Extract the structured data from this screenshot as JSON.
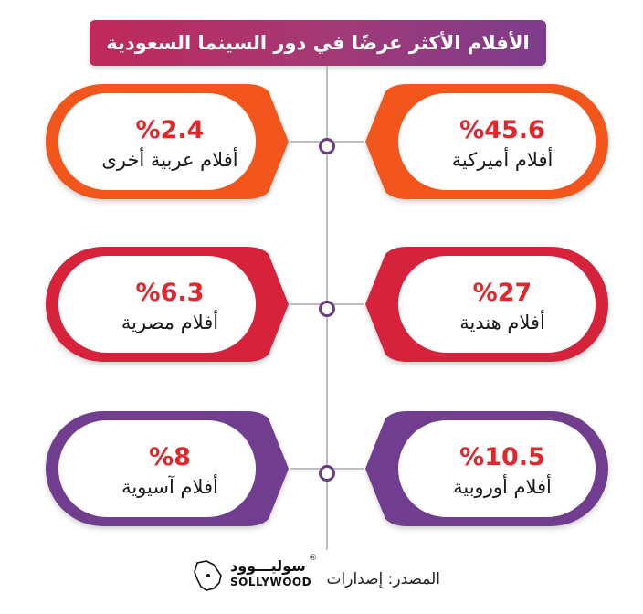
{
  "title": "الأفلام الأكثر عرضًا في دور السينما السعودية",
  "chart_data": {
    "type": "table",
    "categories": [
      "أفلام أميركية",
      "أفلام عربية أخرى",
      "أفلام هندية",
      "أفلام مصرية",
      "أفلام أوروبية",
      "أفلام آسيوية"
    ],
    "values": [
      45.6,
      2.4,
      27,
      6.3,
      10.5,
      8
    ],
    "value_labels": [
      "%45.6",
      "%2.4",
      "%27",
      "%6.3",
      "%10.5",
      "%8"
    ],
    "title": "الأفلام الأكثر عرضًا في دور السينما السعودية"
  },
  "rows": [
    {
      "color": "#f2561d",
      "right": {
        "label": "أفلام أميركية",
        "value": "%45.6"
      },
      "left": {
        "label": "أفلام عربية أخرى",
        "value": "%2.4"
      }
    },
    {
      "color": "#d6243a",
      "right": {
        "label": "أفلام هندية",
        "value": "%27"
      },
      "left": {
        "label": "أفلام مصرية",
        "value": "%6.3"
      }
    },
    {
      "color": "#6f3c8f",
      "right": {
        "label": "أفلام أوروبية",
        "value": "%10.5"
      },
      "left": {
        "label": "أفلام آسيوية",
        "value": "%8"
      }
    }
  ],
  "footer": {
    "source": "المصدر: إصدارات",
    "brand_ar": "سوليـــوود",
    "brand_en": "SOLLYWOOD",
    "reg_mark": "®"
  }
}
